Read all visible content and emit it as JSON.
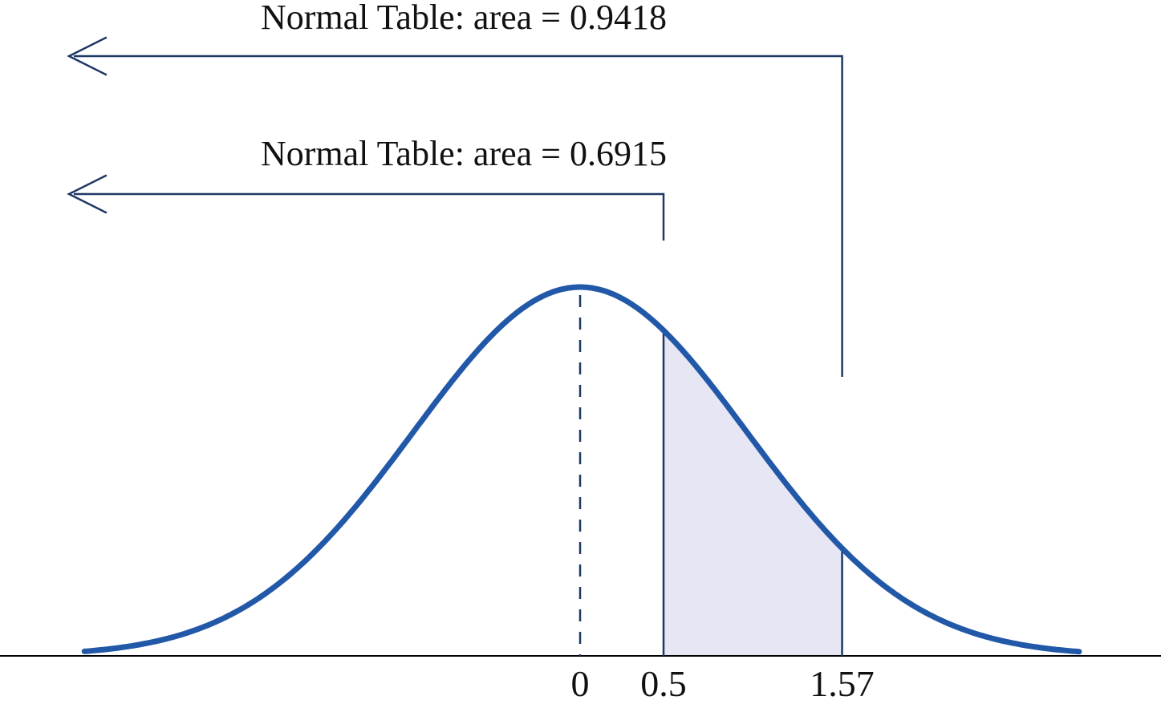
{
  "figure": {
    "background": "#ffffff"
  },
  "chart_data": {
    "type": "area",
    "subtype": "standard-normal-curve",
    "title": "",
    "xlabel": "",
    "ylabel": "",
    "x_axis": {
      "min": -3.45,
      "max": 3.45,
      "ticks": [
        {
          "value": 0,
          "label": "0"
        },
        {
          "value": 0.5,
          "label": "0.5"
        },
        {
          "value": 1.57,
          "label": "1.57"
        }
      ]
    },
    "curve": {
      "distribution": "normal",
      "mean": 0,
      "sd": 1,
      "z_min": -2.97,
      "z_max": 2.99
    },
    "mean_line": {
      "z": 0,
      "style": "dashed"
    },
    "shaded_region": {
      "from_z": 0.5,
      "to_z": 1.57
    },
    "annotations": [
      {
        "label": "Normal Table: area = 0.9418",
        "area": 0.9418,
        "from_z": 1.57,
        "direction": "left"
      },
      {
        "label": "Normal Table: area = 0.6915",
        "area": 0.6915,
        "from_z": 0.5,
        "direction": "left"
      }
    ],
    "colors": {
      "curve": "#2158a8",
      "shade_fill": "#e6e6f4",
      "annotation_line": "#1f3864",
      "axis": "#000000",
      "text": "#111111"
    }
  }
}
